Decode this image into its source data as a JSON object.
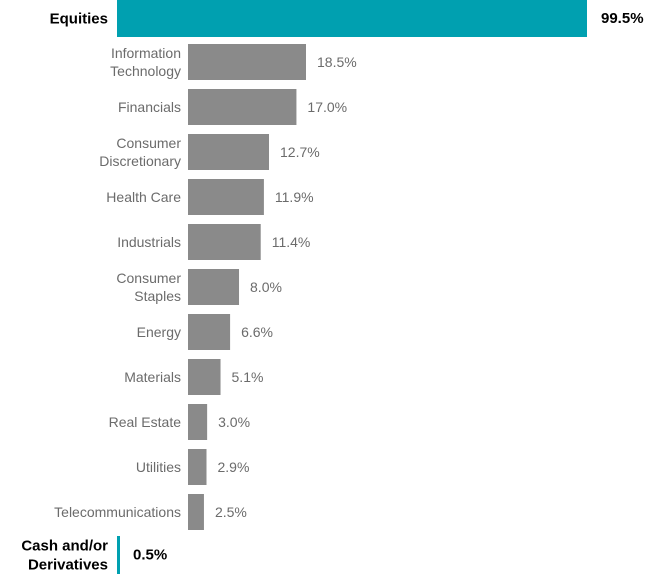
{
  "chart_data": {
    "type": "bar",
    "orientation": "horizontal",
    "unit": "%",
    "colors": {
      "primary": "#00a0b0",
      "sector": "#8a8a8a",
      "label_primary": "#000000",
      "label_sector": "#6b6b6b"
    },
    "primary_categories": [
      {
        "label_lines": [
          "Equities"
        ],
        "value": 99.5,
        "value_label": "99.5%"
      },
      {
        "label_lines": [
          "Cash and/or",
          "Derivatives"
        ],
        "value": 0.5,
        "value_label": "0.5%"
      }
    ],
    "categories": [
      [
        "Information",
        "Technology"
      ],
      [
        "Financials"
      ],
      [
        "Consumer",
        "Discretionary"
      ],
      [
        "Health Care"
      ],
      [
        "Industrials"
      ],
      [
        "Consumer",
        "Staples"
      ],
      [
        "Energy"
      ],
      [
        "Materials"
      ],
      [
        "Real Estate"
      ],
      [
        "Utilities"
      ],
      [
        "Telecommunications"
      ]
    ],
    "values": [
      18.5,
      17.0,
      12.7,
      11.9,
      11.4,
      8.0,
      6.6,
      5.1,
      3.0,
      2.9,
      2.5
    ],
    "value_labels": [
      "18.5%",
      "17.0%",
      "12.7%",
      "11.9%",
      "11.4%",
      "8.0%",
      "6.6%",
      "5.1%",
      "3.0%",
      "2.9%",
      "2.5%"
    ]
  }
}
